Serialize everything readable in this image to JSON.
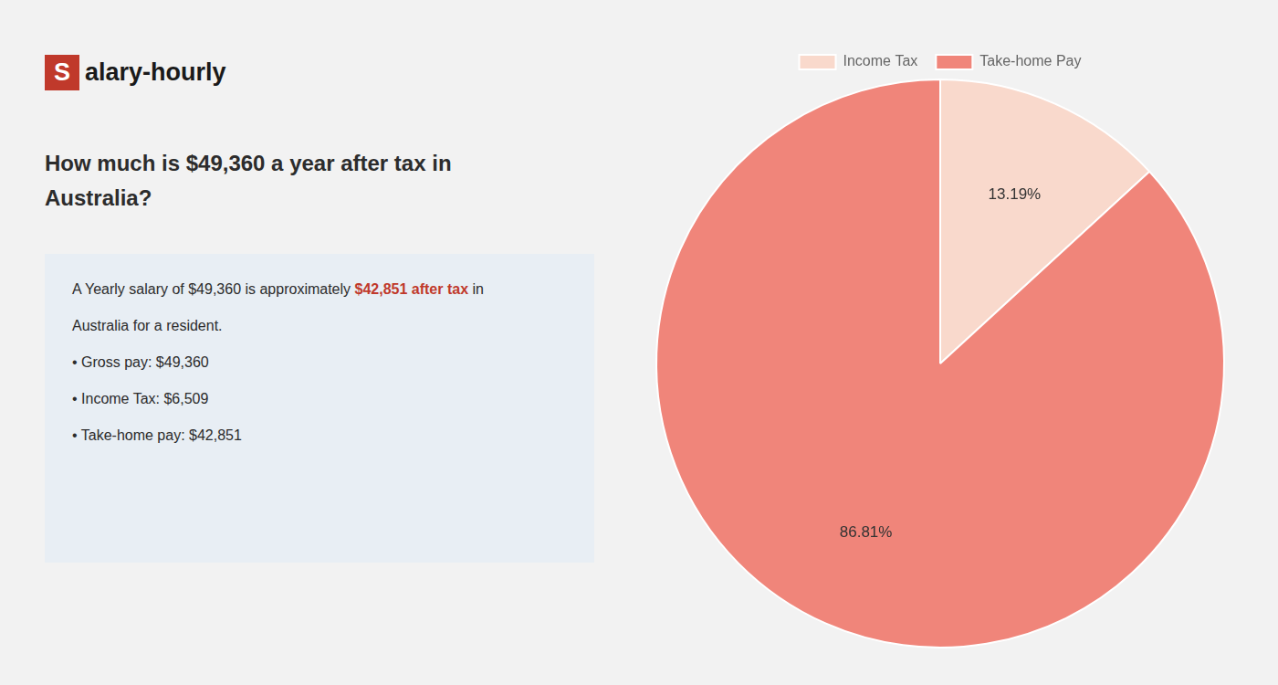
{
  "chart_data": {
    "type": "pie",
    "title": [
      "How much is $49,360 a year after tax in",
      "Australia?"
    ],
    "annotations": [
      [
        {
          "text": "S",
          "color": "#c0392b"
        },
        "alary-hourly"
      ],
      [
        "A Yearly salary of $49,360 is approximately ",
        {
          "text": "$42,851 after tax",
          "color": "#c0392b"
        },
        " in"
      ],
      [
        "Australia for a resident."
      ],
      [
        "• Gross pay: $49,360"
      ],
      [
        "• Income Tax: $6,509"
      ],
      [
        "• Take-home pay: $42,851"
      ]
    ],
    "categories": [
      "Income Tax",
      "Take-home Pay"
    ],
    "values": [
      13.19,
      86.81
    ],
    "value_labels": [
      "13.19%",
      "86.81%"
    ],
    "colors": [
      "#f9d9cc",
      "#f0857a"
    ],
    "data_labels": true,
    "legend": "top"
  }
}
